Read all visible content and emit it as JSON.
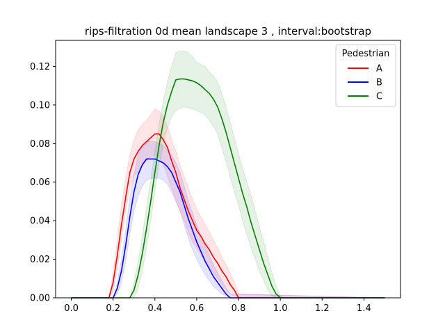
{
  "chart_data": {
    "type": "line",
    "title": "rips-filtration 0d mean landscape 3 , interval:bootstrap",
    "xlabel": "",
    "ylabel": "",
    "xlim": [
      -0.075,
      1.575
    ],
    "ylim": [
      0,
      0.1335
    ],
    "xticks": [
      0.0,
      0.2,
      0.4,
      0.6,
      0.8,
      1.0,
      1.2,
      1.4
    ],
    "xtick_labels": [
      "0.0",
      "0.2",
      "0.4",
      "0.6",
      "0.8",
      "1.0",
      "1.2",
      "1.4"
    ],
    "yticks": [
      0.0,
      0.02,
      0.04,
      0.06,
      0.08,
      0.1,
      0.12
    ],
    "ytick_labels": [
      "0.00",
      "0.02",
      "0.04",
      "0.06",
      "0.08",
      "0.10",
      "0.12"
    ],
    "grid": false,
    "legend": {
      "title": "Pedestrian",
      "placement": "top-right"
    },
    "series": [
      {
        "name": "A",
        "color": "#ff0000",
        "x": [
          0.0,
          0.18,
          0.2,
          0.22,
          0.24,
          0.26,
          0.28,
          0.3,
          0.32,
          0.34,
          0.36,
          0.38,
          0.4,
          0.42,
          0.44,
          0.46,
          0.48,
          0.5,
          0.52,
          0.54,
          0.56,
          0.58,
          0.6,
          0.62,
          0.64,
          0.66,
          0.68,
          0.7,
          0.72,
          0.74,
          0.76,
          0.78,
          0.8,
          1.5
        ],
        "y": [
          0.0,
          0.0,
          0.008,
          0.022,
          0.038,
          0.052,
          0.065,
          0.072,
          0.076,
          0.079,
          0.081,
          0.083,
          0.085,
          0.085,
          0.082,
          0.078,
          0.071,
          0.065,
          0.057,
          0.051,
          0.045,
          0.04,
          0.035,
          0.032,
          0.028,
          0.025,
          0.021,
          0.018,
          0.014,
          0.011,
          0.007,
          0.004,
          0.0,
          0.0
        ],
        "lower": [
          0.0,
          0.0,
          0.003,
          0.015,
          0.03,
          0.045,
          0.057,
          0.063,
          0.066,
          0.069,
          0.071,
          0.073,
          0.074,
          0.073,
          0.069,
          0.063,
          0.057,
          0.051,
          0.045,
          0.04,
          0.034,
          0.029,
          0.026,
          0.022,
          0.019,
          0.016,
          0.013,
          0.01,
          0.007,
          0.004,
          0.002,
          0.001,
          0.0,
          0.0
        ],
        "upper": [
          0.0,
          0.0,
          0.013,
          0.03,
          0.048,
          0.062,
          0.074,
          0.082,
          0.087,
          0.09,
          0.092,
          0.095,
          0.098,
          0.097,
          0.094,
          0.089,
          0.082,
          0.076,
          0.069,
          0.063,
          0.057,
          0.051,
          0.046,
          0.042,
          0.038,
          0.034,
          0.03,
          0.026,
          0.021,
          0.017,
          0.013,
          0.008,
          0.002,
          0.0
        ]
      },
      {
        "name": "B",
        "color": "#0000ff",
        "x": [
          0.0,
          0.2,
          0.22,
          0.24,
          0.26,
          0.28,
          0.3,
          0.32,
          0.34,
          0.36,
          0.38,
          0.4,
          0.42,
          0.44,
          0.46,
          0.48,
          0.5,
          0.52,
          0.54,
          0.56,
          0.58,
          0.6,
          0.62,
          0.64,
          0.66,
          0.68,
          0.7,
          0.72,
          0.74,
          0.76,
          1.5
        ],
        "y": [
          0.0,
          0.0,
          0.005,
          0.014,
          0.027,
          0.042,
          0.055,
          0.064,
          0.069,
          0.072,
          0.072,
          0.072,
          0.071,
          0.07,
          0.068,
          0.065,
          0.06,
          0.055,
          0.048,
          0.041,
          0.035,
          0.029,
          0.024,
          0.019,
          0.015,
          0.011,
          0.008,
          0.005,
          0.002,
          0.0,
          0.0
        ],
        "lower": [
          0.0,
          0.0,
          0.002,
          0.008,
          0.019,
          0.033,
          0.045,
          0.053,
          0.058,
          0.061,
          0.062,
          0.062,
          0.062,
          0.061,
          0.059,
          0.055,
          0.05,
          0.045,
          0.038,
          0.031,
          0.025,
          0.02,
          0.016,
          0.012,
          0.009,
          0.006,
          0.004,
          0.002,
          0.001,
          0.0,
          0.0
        ],
        "upper": [
          0.0,
          0.0,
          0.008,
          0.02,
          0.035,
          0.052,
          0.064,
          0.074,
          0.079,
          0.081,
          0.081,
          0.081,
          0.08,
          0.079,
          0.077,
          0.074,
          0.07,
          0.065,
          0.058,
          0.05,
          0.044,
          0.038,
          0.032,
          0.027,
          0.022,
          0.017,
          0.013,
          0.009,
          0.005,
          0.002,
          0.0
        ]
      },
      {
        "name": "C",
        "color": "#008000",
        "x": [
          0.0,
          0.28,
          0.3,
          0.32,
          0.34,
          0.36,
          0.38,
          0.4,
          0.42,
          0.44,
          0.46,
          0.48,
          0.5,
          0.52,
          0.54,
          0.56,
          0.58,
          0.6,
          0.62,
          0.64,
          0.66,
          0.68,
          0.7,
          0.72,
          0.74,
          0.76,
          0.78,
          0.8,
          0.82,
          0.84,
          0.86,
          0.88,
          0.9,
          0.92,
          0.94,
          0.96,
          0.98,
          1.0,
          1.02,
          1.04,
          1.5
        ],
        "y": [
          0.0,
          0.0,
          0.004,
          0.012,
          0.023,
          0.036,
          0.05,
          0.065,
          0.079,
          0.091,
          0.1,
          0.107,
          0.113,
          0.1135,
          0.1135,
          0.113,
          0.1125,
          0.1115,
          0.11,
          0.108,
          0.106,
          0.103,
          0.099,
          0.093,
          0.086,
          0.078,
          0.07,
          0.062,
          0.054,
          0.047,
          0.039,
          0.032,
          0.025,
          0.018,
          0.012,
          0.006,
          0.002,
          0.0,
          0.0,
          0.0,
          0.0
        ],
        "lower": [
          0.0,
          0.0,
          0.0,
          0.005,
          0.014,
          0.026,
          0.04,
          0.055,
          0.069,
          0.08,
          0.088,
          0.094,
          0.097,
          0.0985,
          0.099,
          0.0985,
          0.098,
          0.097,
          0.096,
          0.095,
          0.092,
          0.089,
          0.085,
          0.078,
          0.071,
          0.063,
          0.055,
          0.048,
          0.04,
          0.033,
          0.026,
          0.02,
          0.014,
          0.009,
          0.004,
          0.001,
          0.0,
          0.0,
          0.0,
          0.0,
          0.0
        ],
        "upper": [
          0.0,
          0.0,
          0.008,
          0.019,
          0.032,
          0.047,
          0.061,
          0.076,
          0.09,
          0.102,
          0.112,
          0.12,
          0.127,
          0.128,
          0.128,
          0.127,
          0.125,
          0.122,
          0.121,
          0.12,
          0.117,
          0.115,
          0.112,
          0.106,
          0.099,
          0.091,
          0.083,
          0.075,
          0.067,
          0.06,
          0.053,
          0.045,
          0.037,
          0.029,
          0.021,
          0.013,
          0.006,
          0.001,
          0.0,
          0.0,
          0.0
        ]
      }
    ]
  }
}
